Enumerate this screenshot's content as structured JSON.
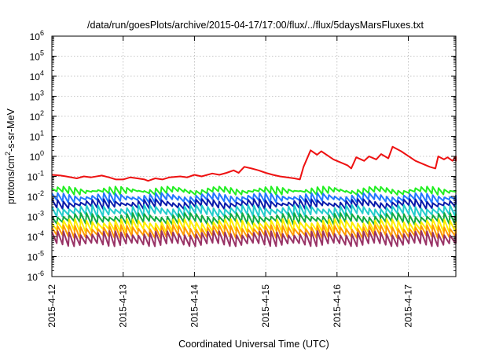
{
  "chart_data": {
    "type": "line",
    "title": "/data/run/goesPlots/archive/2015-04-17/17:00/flux/../flux/5daysMarsFluxes.txt",
    "xlabel": "Coordinated Universal Time (UTC)",
    "ylabel_main": "protons/cm",
    "ylabel_sup": "2",
    "ylabel_rest": "-s-sr-MeV",
    "yscale": "log",
    "ylim": [
      1e-06,
      1000000.0
    ],
    "y_ticks": [
      {
        "base": "10",
        "exp": "-6",
        "value": 1e-06
      },
      {
        "base": "10",
        "exp": "-5",
        "value": 1e-05
      },
      {
        "base": "10",
        "exp": "-4",
        "value": 0.0001
      },
      {
        "base": "10",
        "exp": "-3",
        "value": 0.001
      },
      {
        "base": "10",
        "exp": "-2",
        "value": 0.01
      },
      {
        "base": "10",
        "exp": "-1",
        "value": 0.1
      },
      {
        "base": "10",
        "exp": "0",
        "value": 1
      },
      {
        "base": "10",
        "exp": "1",
        "value": 10
      },
      {
        "base": "10",
        "exp": "2",
        "value": 100
      },
      {
        "base": "10",
        "exp": "3",
        "value": 1000
      },
      {
        "base": "10",
        "exp": "4",
        "value": 10000
      },
      {
        "base": "10",
        "exp": "5",
        "value": 100000
      },
      {
        "base": "10",
        "exp": "6",
        "value": 1000000
      }
    ],
    "xlim": [
      "2015-04-12",
      "2015-04-17 17:00"
    ],
    "x_ticks": [
      "2015-4-12",
      "2015-4-13",
      "2015-4-14",
      "2015-4-15",
      "2015-4-16",
      "2015-4-17"
    ],
    "grid": true,
    "series": [
      {
        "color": "#ee1111",
        "values_approx": [
          0.12,
          0.09,
          0.07,
          0.1,
          0.13,
          0.2,
          0.3,
          0.15,
          0.1,
          2.0,
          1.5,
          0.5,
          0.3,
          0.9,
          0.6,
          3.0,
          1.0,
          0.3,
          0.9,
          0.8
        ]
      },
      {
        "color": "#22ee22",
        "values_approx": [
          0.025,
          0.015
        ]
      },
      {
        "color": "#2277ff",
        "values_approx": [
          0.012,
          0.006
        ]
      },
      {
        "color": "#0a1aaa",
        "values_approx": [
          0.006,
          0.003
        ]
      },
      {
        "color": "#22cccc",
        "values_approx": [
          0.003,
          0.0012
        ]
      },
      {
        "color": "#11aa44",
        "values_approx": [
          0.0012,
          0.0005
        ]
      },
      {
        "color": "#ffee00",
        "values_approx": [
          0.0006,
          0.0002
        ]
      },
      {
        "color": "#ff9900",
        "values_approx": [
          0.0003,
          0.0001
        ]
      },
      {
        "color": "#993366",
        "values_approx": [
          0.00015,
          4e-05
        ]
      }
    ]
  }
}
